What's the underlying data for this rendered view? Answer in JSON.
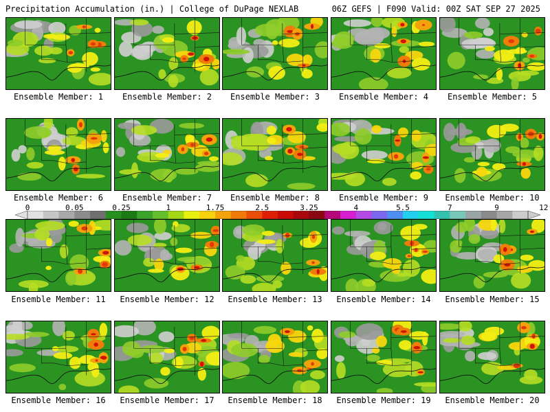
{
  "header": {
    "left": "Precipitation Accumulation (in.) | College of DuPage NEXLAB",
    "right": "06Z GEFS | F090 Valid: 00Z SAT SEP 27 2025"
  },
  "colorbar": {
    "labels": [
      "0",
      "0.05",
      "0.25",
      "1",
      "1.75",
      "2.5",
      "3.25",
      "4",
      "5.5",
      "7",
      "9",
      "12"
    ],
    "colors": [
      "#e2e2e2",
      "#c6c6c6",
      "#a9a9a9",
      "#8c8c8c",
      "#6f6f6f",
      "#278f1f",
      "#1b7a14",
      "#3aa52a",
      "#66bf2a",
      "#a4d817",
      "#e8f00f",
      "#f8d20c",
      "#f4a40a",
      "#ef7a08",
      "#e94d06",
      "#df1f05",
      "#c80a07",
      "#a8060a",
      "#8a0610",
      "#b4087a",
      "#d51fd1",
      "#b44ae6",
      "#7c68f0",
      "#4f8ff2",
      "#22cfee",
      "#15e0d5",
      "#33c1b0",
      "#78c7b8",
      "#9aa6a6",
      "#8a8a8a",
      "#a6a6a6",
      "#cccccc"
    ]
  },
  "members": [
    {
      "label": "Ensemble Member: 1"
    },
    {
      "label": "Ensemble Member: 2"
    },
    {
      "label": "Ensemble Member: 3"
    },
    {
      "label": "Ensemble Member: 4"
    },
    {
      "label": "Ensemble Member: 5"
    },
    {
      "label": "Ensemble Member: 6"
    },
    {
      "label": "Ensemble Member: 7"
    },
    {
      "label": "Ensemble Member: 8"
    },
    {
      "label": "Ensemble Member: 9"
    },
    {
      "label": "Ensemble Member: 10"
    },
    {
      "label": "Ensemble Member: 11"
    },
    {
      "label": "Ensemble Member: 12"
    },
    {
      "label": "Ensemble Member: 13"
    },
    {
      "label": "Ensemble Member: 14"
    },
    {
      "label": "Ensemble Member: 15"
    },
    {
      "label": "Ensemble Member: 16"
    },
    {
      "label": "Ensemble Member: 17"
    },
    {
      "label": "Ensemble Member: 18"
    },
    {
      "label": "Ensemble Member: 19"
    },
    {
      "label": "Ensemble Member: 20"
    }
  ]
}
